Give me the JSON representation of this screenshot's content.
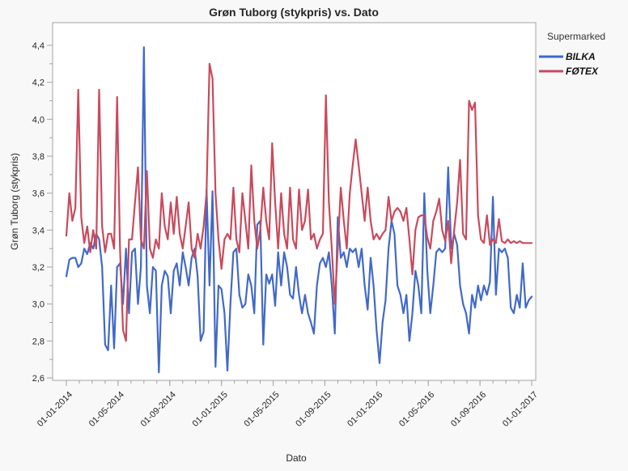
{
  "chart_data": {
    "type": "line",
    "title": "Grøn Tuborg (stykpris) vs. Dato",
    "xlabel": "Dato",
    "ylabel": "Grøn Tuborg (stykpris)",
    "legend_title": "Supermarked",
    "legend_position": "top-right",
    "grid": false,
    "ylim": [
      2.6,
      4.4
    ],
    "y_tick_step": 0.2,
    "y_tick_labels": [
      "2,6",
      "2,8",
      "3,0",
      "3,2",
      "3,4",
      "3,6",
      "3,8",
      "4,0",
      "4,2",
      "4,4"
    ],
    "x_tick_labels": [
      "01-01-2014",
      "01-05-2014",
      "01-09-2014",
      "01-01-2015",
      "01-05-2015",
      "01-09-2015",
      "01-01-2016",
      "01-05-2016",
      "01-09-2016",
      "01-01-2017"
    ],
    "x_tick_months": [
      0,
      4,
      8,
      12,
      16,
      20,
      24,
      28,
      32,
      36
    ],
    "x_minor_tick_every_month": 1,
    "x_unit": "week",
    "x_range_weeks": [
      0,
      156
    ],
    "frame_color": "#a3a3a3",
    "plot_bg": "#ffffff",
    "outer_bg": "#f8f8f8",
    "series": [
      {
        "name": "BILKA",
        "color": "#4169c8",
        "values": [
          3.15,
          3.24,
          3.25,
          3.25,
          3.2,
          3.22,
          3.3,
          3.27,
          3.33,
          3.3,
          3.38,
          3.35,
          3.2,
          2.78,
          2.75,
          3.1,
          2.76,
          3.2,
          3.22,
          3.0,
          3.3,
          2.95,
          3.28,
          3.3,
          3.0,
          3.2,
          4.39,
          3.1,
          2.95,
          3.2,
          3.18,
          2.63,
          3.1,
          3.18,
          3.15,
          2.95,
          3.18,
          3.22,
          3.1,
          3.28,
          3.2,
          3.1,
          3.25,
          3.3,
          3.15,
          2.8,
          2.85,
          3.62,
          3.1,
          3.61,
          2.66,
          3.1,
          3.08,
          2.95,
          2.64,
          3.0,
          3.28,
          3.3,
          3.05,
          2.98,
          3.0,
          3.16,
          3.1,
          2.95,
          3.43,
          3.45,
          2.78,
          3.16,
          3.11,
          3.16,
          2.99,
          3.28,
          3.1,
          3.28,
          3.2,
          3.05,
          3.03,
          3.2,
          3.05,
          2.95,
          3.05,
          2.95,
          2.9,
          2.84,
          3.1,
          3.22,
          3.25,
          3.2,
          3.28,
          3.1,
          2.84,
          3.47,
          3.25,
          3.28,
          3.2,
          3.3,
          3.28,
          3.3,
          3.2,
          3.3,
          3.1,
          2.97,
          3.25,
          3.1,
          2.86,
          2.68,
          2.9,
          3.02,
          3.3,
          3.45,
          3.38,
          3.1,
          3.05,
          2.95,
          3.05,
          2.8,
          2.95,
          3.18,
          3.1,
          2.95,
          3.6,
          3.18,
          2.95,
          3.1,
          3.28,
          3.3,
          3.28,
          3.3,
          3.74,
          3.3,
          3.38,
          3.32,
          3.1,
          3.0,
          2.95,
          2.84,
          3.05,
          2.98,
          3.1,
          3.02,
          3.1,
          3.05,
          3.12,
          3.58,
          3.05,
          3.3,
          3.28,
          3.3,
          3.25,
          2.98,
          2.95,
          3.05,
          2.98,
          3.22,
          2.98,
          3.02,
          3.04
        ]
      },
      {
        "name": "FØTEX",
        "color": "#c94a5c",
        "values": [
          3.37,
          3.6,
          3.45,
          3.52,
          4.16,
          3.47,
          3.33,
          3.42,
          3.28,
          3.4,
          3.3,
          4.16,
          3.42,
          3.28,
          3.38,
          3.38,
          3.3,
          4.12,
          3.3,
          2.86,
          2.8,
          3.35,
          3.35,
          3.55,
          3.74,
          3.35,
          3.3,
          3.72,
          3.3,
          3.25,
          3.35,
          3.3,
          3.6,
          3.42,
          3.35,
          3.55,
          3.38,
          3.58,
          3.38,
          3.3,
          3.42,
          3.55,
          3.3,
          3.25,
          3.38,
          3.3,
          3.42,
          3.6,
          4.3,
          4.22,
          3.6,
          3.35,
          3.19,
          3.35,
          3.38,
          3.35,
          3.63,
          3.35,
          3.28,
          3.6,
          3.45,
          3.3,
          3.75,
          3.45,
          3.3,
          3.4,
          3.63,
          3.45,
          3.35,
          3.87,
          3.55,
          3.3,
          3.6,
          3.38,
          3.3,
          3.63,
          3.35,
          3.3,
          3.62,
          3.4,
          3.45,
          3.62,
          3.35,
          3.38,
          3.3,
          3.35,
          3.38,
          4.13,
          3.55,
          3.3,
          3.0,
          3.3,
          3.63,
          3.45,
          3.3,
          3.6,
          3.75,
          3.89,
          3.75,
          3.6,
          3.45,
          3.63,
          3.45,
          3.35,
          3.38,
          3.35,
          3.38,
          3.4,
          3.58,
          3.45,
          3.5,
          3.52,
          3.5,
          3.45,
          3.52,
          3.35,
          3.16,
          3.4,
          3.47,
          3.48,
          3.48,
          3.36,
          3.3,
          3.45,
          3.5,
          3.57,
          3.4,
          3.34,
          3.45,
          3.22,
          3.4,
          3.55,
          3.78,
          3.38,
          3.35,
          4.1,
          4.05,
          4.09,
          3.48,
          3.35,
          3.33,
          3.48,
          3.32,
          3.35,
          3.33,
          3.46,
          3.34,
          3.33,
          3.35,
          3.33,
          3.34,
          3.33,
          3.34,
          3.33,
          3.33,
          3.33,
          3.33
        ]
      }
    ]
  }
}
